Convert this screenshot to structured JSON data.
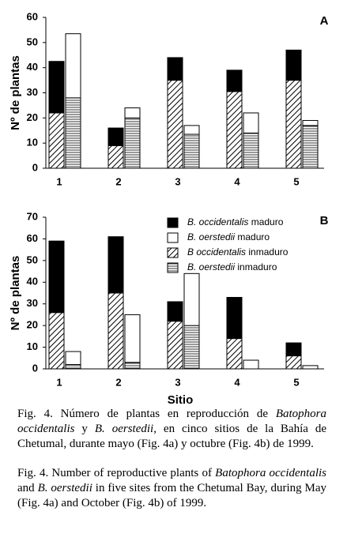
{
  "chart_data": [
    {
      "type": "bar",
      "label": "A",
      "y_label": "Nº de plantas",
      "categories": [
        "1",
        "2",
        "3",
        "4",
        "5"
      ],
      "series": [
        {
          "color": "#000000",
          "values": [
            20.5,
            7,
            9,
            8.5,
            12
          ]
        },
        {
          "color": "#ffffff",
          "values": [
            25.5,
            4,
            3.5,
            8,
            2
          ]
        },
        {
          "color": "#ffffff",
          "pattern": "diagonal",
          "values": [
            22,
            9,
            35,
            30.5,
            35
          ]
        },
        {
          "color": "#ffffff",
          "pattern": "horizontal",
          "values": [
            28,
            20,
            13.5,
            14,
            17
          ]
        }
      ],
      "ylim": [
        0,
        60
      ],
      "yticks": [
        0,
        10,
        20,
        30,
        40,
        50,
        60
      ]
    },
    {
      "type": "bar",
      "label": "B",
      "y_label": "Nº de plantas",
      "x_label": "Sitio",
      "categories": [
        "1",
        "2",
        "3",
        "4",
        "5"
      ],
      "series": [
        {
          "name": "B. occidentalis maduro",
          "color": "#000000",
          "values": [
            33,
            26,
            9,
            19,
            6
          ]
        },
        {
          "name": "B. oerstedii maduro",
          "color": "#ffffff",
          "values": [
            6,
            22,
            24,
            4,
            1.5
          ]
        },
        {
          "name": "B occidentalis inmaduro",
          "color": "#ffffff",
          "pattern": "diagonal",
          "values": [
            26,
            35,
            22,
            14,
            6
          ]
        },
        {
          "name": "B. oerstedii inmaduro",
          "color": "#ffffff",
          "pattern": "horizontal",
          "values": [
            2,
            3,
            20,
            0,
            0
          ]
        }
      ],
      "ylim": [
        0,
        70
      ],
      "yticks": [
        0,
        10,
        20,
        30,
        40,
        50,
        60,
        70
      ],
      "legend": "upper right"
    }
  ],
  "captions": [
    {
      "segments": [
        "Fig. 4. Número de plantas en reproducción de ",
        "Batophora occidentalis",
        " y ",
        "B. oerstedii",
        ", en cinco sitios de la Bahía de Chetumal, durante mayo (Fig. 4a) y octubre (Fig. 4b) de 1999."
      ]
    },
    {
      "segments": [
        "Fig. 4. Number of reproductive plants of ",
        "Batophora occidentalis",
        " and ",
        "B. oerstedii",
        " in five sites from the Chetumal Bay, during May (Fig. 4a) and October (Fig. 4b) of 1999."
      ]
    }
  ]
}
